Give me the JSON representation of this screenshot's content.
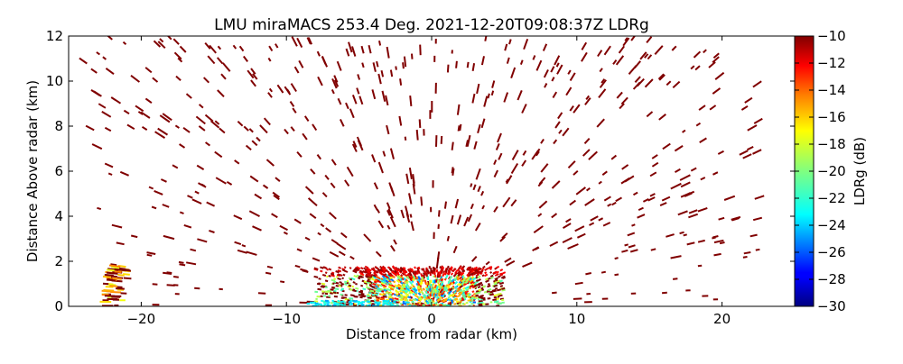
{
  "chart_data": {
    "type": "heatmap",
    "title": "LMU miraMACS 253.4 Deg. 2021-12-20T09:08:37Z  LDRg",
    "xlabel": "Distance from radar (km)",
    "ylabel": "Distance Above radar  (km)",
    "xlim": [
      -25,
      25
    ],
    "ylim": [
      0,
      12
    ],
    "x_ticks": [
      -20,
      -10,
      0,
      10,
      20
    ],
    "x_tick_labels": [
      "−20",
      "−10",
      "0",
      "10",
      "20"
    ],
    "y_ticks": [
      0,
      2,
      4,
      6,
      8,
      10,
      12
    ],
    "y_tick_labels": [
      "0",
      "2",
      "4",
      "6",
      "8",
      "10",
      "12"
    ],
    "colorbar": {
      "label": "LDRg (dB)",
      "range": [
        -30,
        -10
      ],
      "ticks": [
        -10,
        -12,
        -14,
        -16,
        -18,
        -20,
        -22,
        -24,
        -26,
        -28,
        -30
      ],
      "tick_labels": [
        "−10",
        "−12",
        "−14",
        "−16",
        "−18",
        "−20",
        "−22",
        "−24",
        "−26",
        "−28",
        "−30"
      ],
      "colormap": "jet",
      "stops": [
        "#000080",
        "#0000ff",
        "#00ffff",
        "#80ff80",
        "#ffff00",
        "#ff8000",
        "#ff0000",
        "#800000"
      ]
    },
    "dominant_value_db": -10,
    "scatter_region": {
      "x_range": [
        -24,
        23
      ],
      "y_range": [
        0,
        12
      ],
      "value_db": -10
    },
    "low_level_echo": {
      "x_range": [
        -8,
        5
      ],
      "y_range": [
        0,
        1.8
      ],
      "value_range_db": [
        -26,
        -10
      ]
    },
    "far_left_echo": {
      "x_range": [
        -22.5,
        -21
      ],
      "y_range": [
        0,
        1.8
      ],
      "value_range_db": [
        -18,
        -10
      ]
    }
  }
}
